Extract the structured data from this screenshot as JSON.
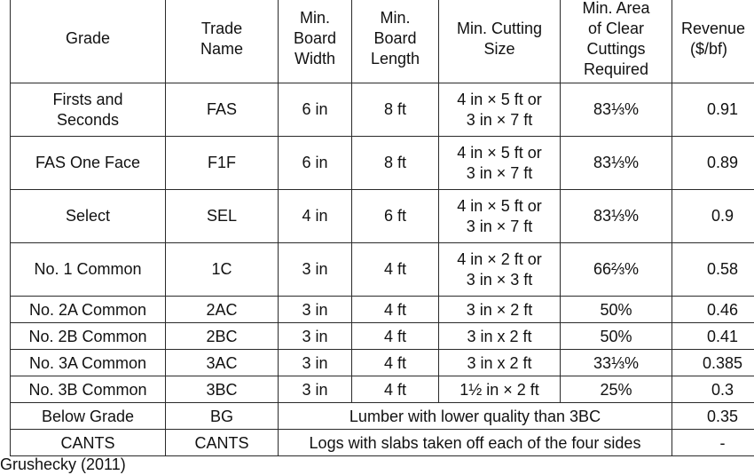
{
  "headers": {
    "grade": "Grade",
    "trade_name": [
      "Trade",
      "Name"
    ],
    "min_board_width": [
      "Min.",
      "Board",
      "Width"
    ],
    "min_board_length": [
      "Min.",
      "Board",
      "Length"
    ],
    "min_cutting_size": [
      "Min. Cutting",
      "Size"
    ],
    "min_area": [
      "Min. Area",
      "of Clear",
      "Cuttings",
      "Required"
    ],
    "revenue": [
      "Revenue",
      "($/bf)"
    ]
  },
  "rows": [
    {
      "grade": [
        "Firsts and",
        "Seconds"
      ],
      "trade": "FAS",
      "width": "6 in",
      "length": "8 ft",
      "cutting": [
        "4 in × 5 ft or",
        "3 in × 7 ft"
      ],
      "area": "83⅓%",
      "revenue": "0.91"
    },
    {
      "grade": [
        "FAS One Face"
      ],
      "trade": "F1F",
      "width": "6 in",
      "length": "8 ft",
      "cutting": [
        "4 in × 5 ft or",
        "3 in × 7 ft"
      ],
      "area": "83⅓%",
      "revenue": "0.89"
    },
    {
      "grade": [
        "Select"
      ],
      "trade": "SEL",
      "width": "4 in",
      "length": "6 ft",
      "cutting": [
        "4 in × 5 ft or",
        "3 in × 7 ft"
      ],
      "area": "83⅓%",
      "revenue": "0.9"
    },
    {
      "grade": [
        "No. 1 Common"
      ],
      "trade": "1C",
      "width": "3 in",
      "length": "4 ft",
      "cutting": [
        "4 in × 2 ft or",
        "3 in × 3 ft"
      ],
      "area": "66⅔%",
      "revenue": "0.58"
    },
    {
      "grade": [
        "No. 2A Common"
      ],
      "trade": "2AC",
      "width": "3 in",
      "length": "4 ft",
      "cutting": [
        "3 in × 2 ft"
      ],
      "area": "50%",
      "revenue": "0.46"
    },
    {
      "grade": [
        "No. 2B Common"
      ],
      "trade": "2BC",
      "width": "3 in",
      "length": "4 ft",
      "cutting": [
        "3 in x 2 ft"
      ],
      "area": "50%",
      "revenue": "0.41"
    },
    {
      "grade": [
        "No. 3A Common"
      ],
      "trade": "3AC",
      "width": "3 in",
      "length": "4 ft",
      "cutting": [
        "3 in x 2 ft"
      ],
      "area": "33⅓%",
      "revenue": "0.385"
    },
    {
      "grade": [
        "No. 3B Common"
      ],
      "trade": "3BC",
      "width": "3 in",
      "length": "4 ft",
      "cutting": [
        "1½ in × 2 ft"
      ],
      "area": "25%",
      "revenue": "0.3"
    }
  ],
  "merged_rows": [
    {
      "grade": "Below Grade",
      "trade": "BG",
      "description": "Lumber with lower quality than 3BC",
      "revenue": "0.35"
    },
    {
      "grade": "CANTS",
      "trade": "CANTS",
      "description": "Logs with slabs taken off each of the four sides",
      "revenue": "-"
    }
  ],
  "source": "Grushecky (2011)"
}
